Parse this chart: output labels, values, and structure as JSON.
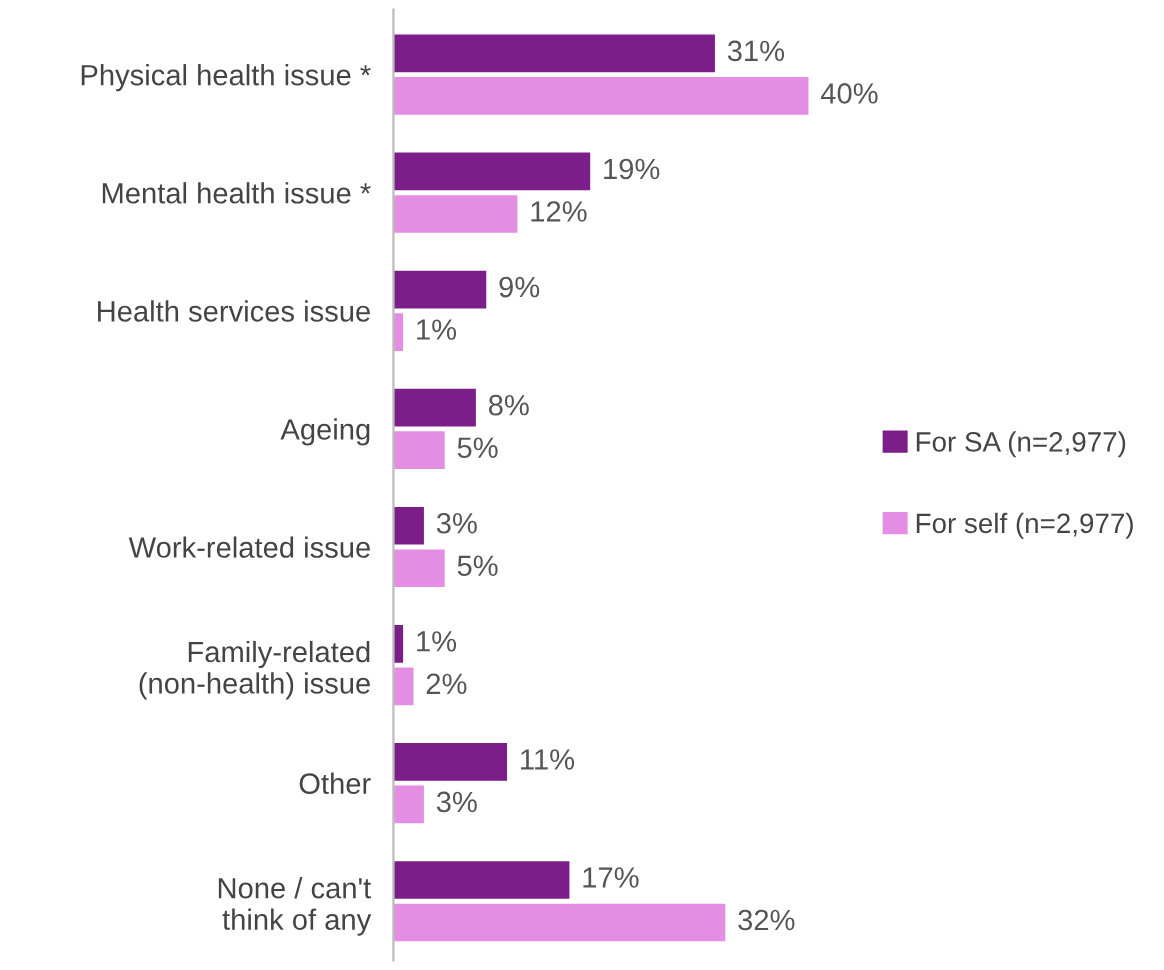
{
  "chart_data": {
    "type": "bar",
    "orientation": "horizontal",
    "categories": [
      "Physical health issue *",
      "Mental health issue *",
      "Health services issue",
      "Ageing",
      "Work-related issue",
      "Family-related\n(non-health) issue",
      "Other",
      "None / can't\nthink of any"
    ],
    "series": [
      {
        "name": "For SA (n=2,977)",
        "color": "#7b1e88",
        "values": [
          31,
          19,
          9,
          8,
          3,
          1,
          11,
          17
        ],
        "value_labels": [
          "31%",
          "19%",
          "9%",
          "8%",
          "3%",
          "1%",
          "11%",
          "17%"
        ]
      },
      {
        "name": "For self (n=2,977)",
        "color": "#e38de3",
        "values": [
          40,
          12,
          1,
          5,
          5,
          2,
          3,
          32
        ],
        "value_labels": [
          "40%",
          "12%",
          "1%",
          "5%",
          "5%",
          "2%",
          "3%",
          "32%"
        ]
      }
    ],
    "legend": "right",
    "grid": false
  }
}
